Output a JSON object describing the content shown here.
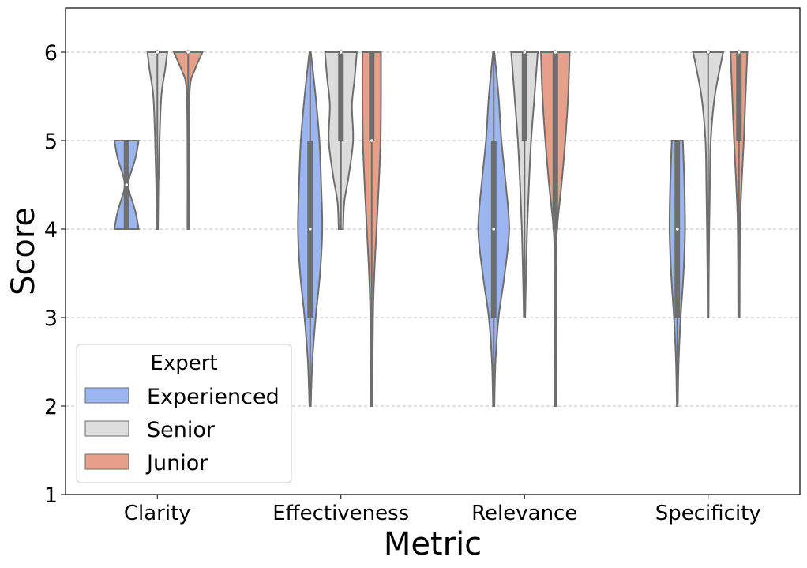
{
  "chart_data": {
    "type": "violin",
    "title": "",
    "xlabel": "Metric",
    "ylabel": "Score",
    "ylim": [
      1,
      6.5
    ],
    "yticks": [
      1,
      2,
      3,
      4,
      5,
      6
    ],
    "grid": "y-dashed",
    "categories": [
      "Clarity",
      "Effectiveness",
      "Relevance",
      "Specificity"
    ],
    "legend": {
      "title": "Expert",
      "placement": "lower-left",
      "entries": [
        "Experienced",
        "Senior",
        "Junior"
      ]
    },
    "series": [
      {
        "name": "Experienced",
        "color": "#9ab5f0",
        "violins": [
          {
            "category": "Clarity",
            "min": 4,
            "q1": 4,
            "median": 4.5,
            "q3": 5,
            "max": 5,
            "density": [
              [
                4,
                0.55
              ],
              [
                4.2,
                0.4
              ],
              [
                4.4,
                0.15
              ],
              [
                4.5,
                0.08
              ],
              [
                4.6,
                0.15
              ],
              [
                4.8,
                0.4
              ],
              [
                5,
                0.55
              ]
            ]
          },
          {
            "category": "Effectiveness",
            "min": 2,
            "q1": 3,
            "median": 4,
            "q3": 5,
            "max": 6,
            "density": [
              [
                2,
                0.03
              ],
              [
                2.5,
                0.1
              ],
              [
                3,
                0.25
              ],
              [
                3.5,
                0.45
              ],
              [
                4,
                0.55
              ],
              [
                4.5,
                0.5
              ],
              [
                5,
                0.42
              ],
              [
                5.5,
                0.25
              ],
              [
                6,
                0.03
              ]
            ]
          },
          {
            "category": "Relevance",
            "min": 2,
            "q1": 3,
            "median": 4,
            "q3": 5,
            "max": 6,
            "density": [
              [
                2,
                0.03
              ],
              [
                2.5,
                0.08
              ],
              [
                3,
                0.22
              ],
              [
                3.5,
                0.5
              ],
              [
                4,
                0.7
              ],
              [
                4.5,
                0.55
              ],
              [
                5,
                0.35
              ],
              [
                5.5,
                0.22
              ],
              [
                6,
                0.03
              ]
            ]
          },
          {
            "category": "Specificity",
            "min": 2,
            "q1": 3,
            "median": 4,
            "q3": 5,
            "max": 5,
            "density": [
              [
                2,
                0.02
              ],
              [
                2.5,
                0.06
              ],
              [
                3,
                0.15
              ],
              [
                3.5,
                0.28
              ],
              [
                4,
                0.35
              ],
              [
                4.5,
                0.32
              ],
              [
                5,
                0.25
              ]
            ]
          }
        ]
      },
      {
        "name": "Senior",
        "color": "#dcdcdc",
        "violins": [
          {
            "category": "Clarity",
            "min": 4,
            "q1": 6,
            "median": 6,
            "q3": 6,
            "max": 6,
            "density": [
              [
                4,
                0.03
              ],
              [
                4.5,
                0.05
              ],
              [
                5,
                0.1
              ],
              [
                5.5,
                0.18
              ],
              [
                5.8,
                0.35
              ],
              [
                6,
                0.45
              ]
            ]
          },
          {
            "category": "Effectiveness",
            "min": 4,
            "q1": 5,
            "median": 6,
            "q3": 6,
            "max": 6,
            "density": [
              [
                4,
                0.1
              ],
              [
                4.3,
                0.15
              ],
              [
                4.6,
                0.35
              ],
              [
                5,
                0.55
              ],
              [
                5.4,
                0.5
              ],
              [
                5.7,
                0.62
              ],
              [
                6,
                0.72
              ]
            ]
          },
          {
            "category": "Relevance",
            "min": 3,
            "q1": 5,
            "median": 6,
            "q3": 6,
            "max": 6,
            "density": [
              [
                3,
                0.03
              ],
              [
                3.5,
                0.07
              ],
              [
                4,
                0.12
              ],
              [
                4.5,
                0.2
              ],
              [
                5,
                0.3
              ],
              [
                5.5,
                0.45
              ],
              [
                6,
                0.6
              ]
            ]
          },
          {
            "category": "Specificity",
            "min": 3,
            "q1": 6,
            "median": 6,
            "q3": 6,
            "max": 6,
            "density": [
              [
                3,
                0.02
              ],
              [
                3.5,
                0.03
              ],
              [
                4,
                0.05
              ],
              [
                4.5,
                0.08
              ],
              [
                5,
                0.12
              ],
              [
                5.5,
                0.3
              ],
              [
                6,
                0.68
              ]
            ]
          }
        ]
      },
      {
        "name": "Junior",
        "color": "#e6a089",
        "violins": [
          {
            "category": "Clarity",
            "min": 4,
            "q1": 6,
            "median": 6,
            "q3": 6,
            "max": 6,
            "density": [
              [
                4,
                0.03
              ],
              [
                5,
                0.03
              ],
              [
                5.6,
                0.08
              ],
              [
                5.8,
                0.3
              ],
              [
                6,
                0.65
              ]
            ]
          },
          {
            "category": "Effectiveness",
            "min": 2,
            "q1": 5,
            "median": 5,
            "q3": 6,
            "max": 6,
            "density": [
              [
                2,
                0.03
              ],
              [
                3,
                0.06
              ],
              [
                3.5,
                0.12
              ],
              [
                4,
                0.22
              ],
              [
                4.5,
                0.32
              ],
              [
                5,
                0.4
              ],
              [
                5.5,
                0.42
              ],
              [
                6,
                0.42
              ]
            ]
          },
          {
            "category": "Relevance",
            "min": 2,
            "q1": 4,
            "median": 6,
            "q3": 6,
            "max": 6,
            "density": [
              [
                2,
                0.03
              ],
              [
                3.5,
                0.03
              ],
              [
                4,
                0.08
              ],
              [
                4.5,
                0.28
              ],
              [
                5,
                0.45
              ],
              [
                5.5,
                0.58
              ],
              [
                6,
                0.65
              ]
            ]
          },
          {
            "category": "Specificity",
            "min": 3,
            "q1": 5,
            "median": 6,
            "q3": 6,
            "max": 6,
            "density": [
              [
                3,
                0.03
              ],
              [
                4,
                0.05
              ],
              [
                4.5,
                0.12
              ],
              [
                5,
                0.22
              ],
              [
                5.5,
                0.3
              ],
              [
                6,
                0.38
              ]
            ]
          }
        ]
      }
    ]
  }
}
